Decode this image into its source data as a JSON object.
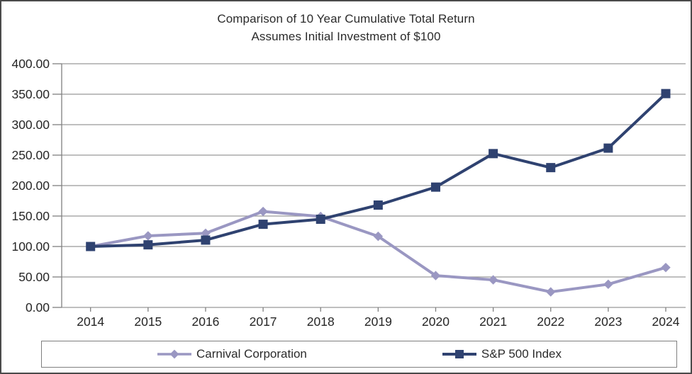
{
  "window": {
    "background_color": "#ffffff",
    "border_color": "#4a4a4a"
  },
  "chart": {
    "title_line1": "Comparison of 10 Year Cumulative Total Return",
    "title_line2": "Assumes Initial Investment of $100"
  },
  "chart_data": {
    "type": "line",
    "title": "Comparison of 10 Year Cumulative Total Return",
    "subtitle": "Assumes Initial Investment of $100",
    "xlabel": "",
    "ylabel": "",
    "categories": [
      "2014",
      "2015",
      "2016",
      "2017",
      "2018",
      "2019",
      "2020",
      "2021",
      "2022",
      "2023",
      "2024"
    ],
    "series": [
      {
        "name": "Carnival Corporation",
        "color": "#9a97c2",
        "marker": "diamond",
        "values": [
          100.0,
          117.5,
          121.75,
          157.5,
          149.25,
          116.75,
          52.25,
          45.25,
          25.5,
          38.0,
          65.5
        ]
      },
      {
        "name": "S&P 500 Index",
        "color": "#2f4270",
        "marker": "square",
        "values": [
          100.0,
          102.75,
          110.5,
          136.5,
          144.75,
          168.0,
          197.5,
          252.5,
          229.5,
          261.5,
          351.0
        ]
      }
    ],
    "ylim": [
      0,
      400
    ],
    "ytick_step": 50,
    "ytick_labels": [
      "0.00",
      "50.00",
      "100.00",
      "150.00",
      "200.00",
      "250.00",
      "300.00",
      "350.00",
      "400.00"
    ],
    "grid": true,
    "legend_position": "bottom",
    "grid_color": "#999999",
    "axis_color": "#808080",
    "text_color": "#262626"
  }
}
